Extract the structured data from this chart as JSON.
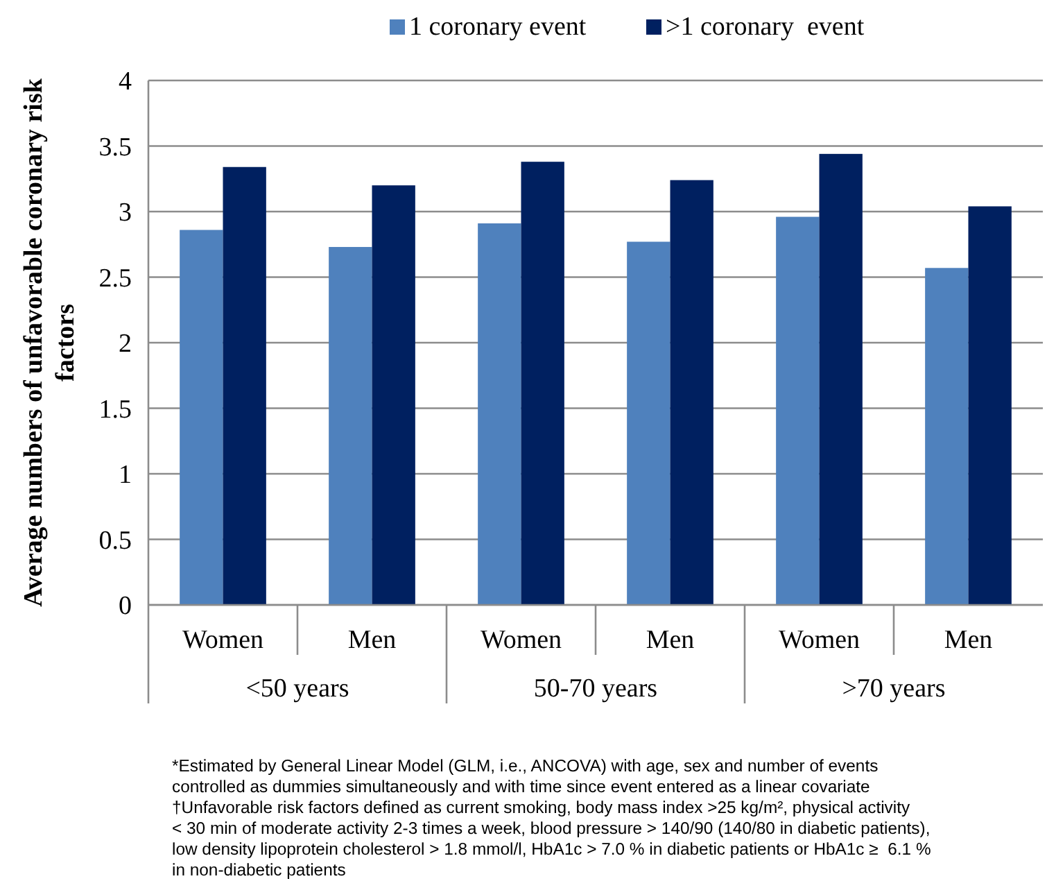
{
  "chart_data": {
    "type": "bar",
    "ylabel": "Average numbers of unfavorable coronary risk factors",
    "categories": [
      "Women",
      "Men",
      "Women",
      "Men",
      "Women",
      "Men"
    ],
    "series": [
      {
        "name": "1 coronary event",
        "color": "#4f81bd",
        "values": [
          2.86,
          2.73,
          2.91,
          2.77,
          2.96,
          2.57
        ]
      },
      {
        "name": ">1 coronary  event",
        "color": "#002060",
        "values": [
          3.34,
          3.2,
          3.38,
          3.24,
          3.44,
          3.04
        ]
      }
    ],
    "ylim": [
      0,
      4
    ],
    "yticks": [
      0,
      0.5,
      1,
      1.5,
      2,
      2.5,
      3,
      3.5,
      4
    ],
    "grid": "y",
    "legend": "top",
    "annotations": [
      "<50 years",
      "50-70 years",
      ">70 years",
      "*Estimated by General Linear Model (GLM, i.e., ANCOVA) with age, sex and number of events\ncontrolled as dummies simultaneously and with time since event entered as a linear covariate\n†Unfavorable risk factors defined as current smoking, body mass index >25 kg/m², physical activity\n< 30 min of moderate activity 2-3 times a week, blood pressure > 140/90 (140/80 in diabetic patients),\nlow density lipoprotein cholesterol > 1.8 mmol/l, HbA1c > 7.0 % in diabetic patients or HbA1c ≥  6.1 %\nin non-diabetic patients"
    ]
  }
}
